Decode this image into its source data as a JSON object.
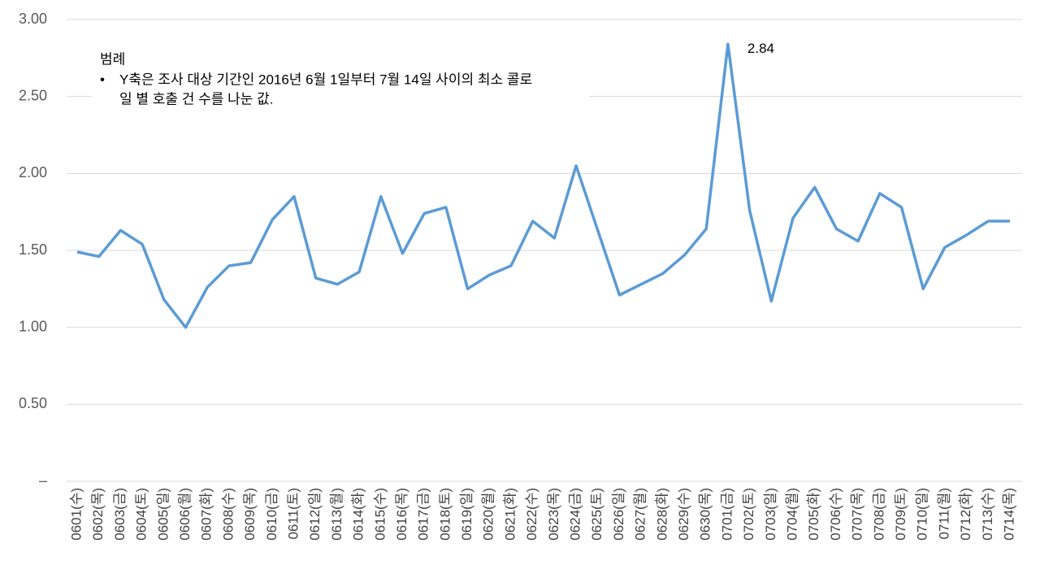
{
  "chart_data": {
    "type": "line",
    "categories": [
      "0601(수)",
      "0602(목)",
      "0603(금)",
      "0604(토)",
      "0605(일)",
      "0606(월)",
      "0607(화)",
      "0608(수)",
      "0609(목)",
      "0610(금)",
      "0611(토)",
      "0612(일)",
      "0613(월)",
      "0614(화)",
      "0615(수)",
      "0616(목)",
      "0617(금)",
      "0618(토)",
      "0619(일)",
      "0620(월)",
      "0621(화)",
      "0622(수)",
      "0623(목)",
      "0624(금)",
      "0625(토)",
      "0626(일)",
      "0627(월)",
      "0628(화)",
      "0629(수)",
      "0630(목)",
      "0701(금)",
      "0702(토)",
      "0703(일)",
      "0704(월)",
      "0705(화)",
      "0706(수)",
      "0707(목)",
      "0708(금)",
      "0709(토)",
      "0710(일)",
      "0711(월)",
      "0712(화)",
      "0713(수)",
      "0714(목)"
    ],
    "values": [
      1.49,
      1.46,
      1.63,
      1.54,
      1.18,
      1.0,
      1.26,
      1.4,
      1.42,
      1.7,
      1.85,
      1.32,
      1.28,
      1.36,
      1.85,
      1.48,
      1.74,
      1.78,
      1.25,
      1.34,
      1.4,
      1.69,
      1.58,
      2.05,
      1.63,
      1.21,
      1.28,
      1.35,
      1.47,
      1.64,
      2.84,
      1.76,
      1.17,
      1.71,
      1.91,
      1.64,
      1.56,
      1.87,
      1.78,
      1.25,
      1.52,
      1.6,
      1.69,
      1.69
    ],
    "color": "#5b9bd5",
    "ylim": [
      0,
      3
    ],
    "yticks": [
      {
        "value": 0,
        "label": "–"
      },
      {
        "value": 0.5,
        "label": "0.50"
      },
      {
        "value": 1,
        "label": "1.00"
      },
      {
        "value": 1.5,
        "label": "1.50"
      },
      {
        "value": 2,
        "label": "2.00"
      },
      {
        "value": 2.5,
        "label": "2.50"
      },
      {
        "value": 3,
        "label": "3.00"
      }
    ],
    "grid": true,
    "label_max": true,
    "note_title": "범례",
    "note_lines": [
      "Y축은 조사 대상 기간인 2016년 6월 1일부터 7월 14일 사이의 최소 콜로",
      "일 별 호출 건 수를 나눈 값."
    ]
  }
}
